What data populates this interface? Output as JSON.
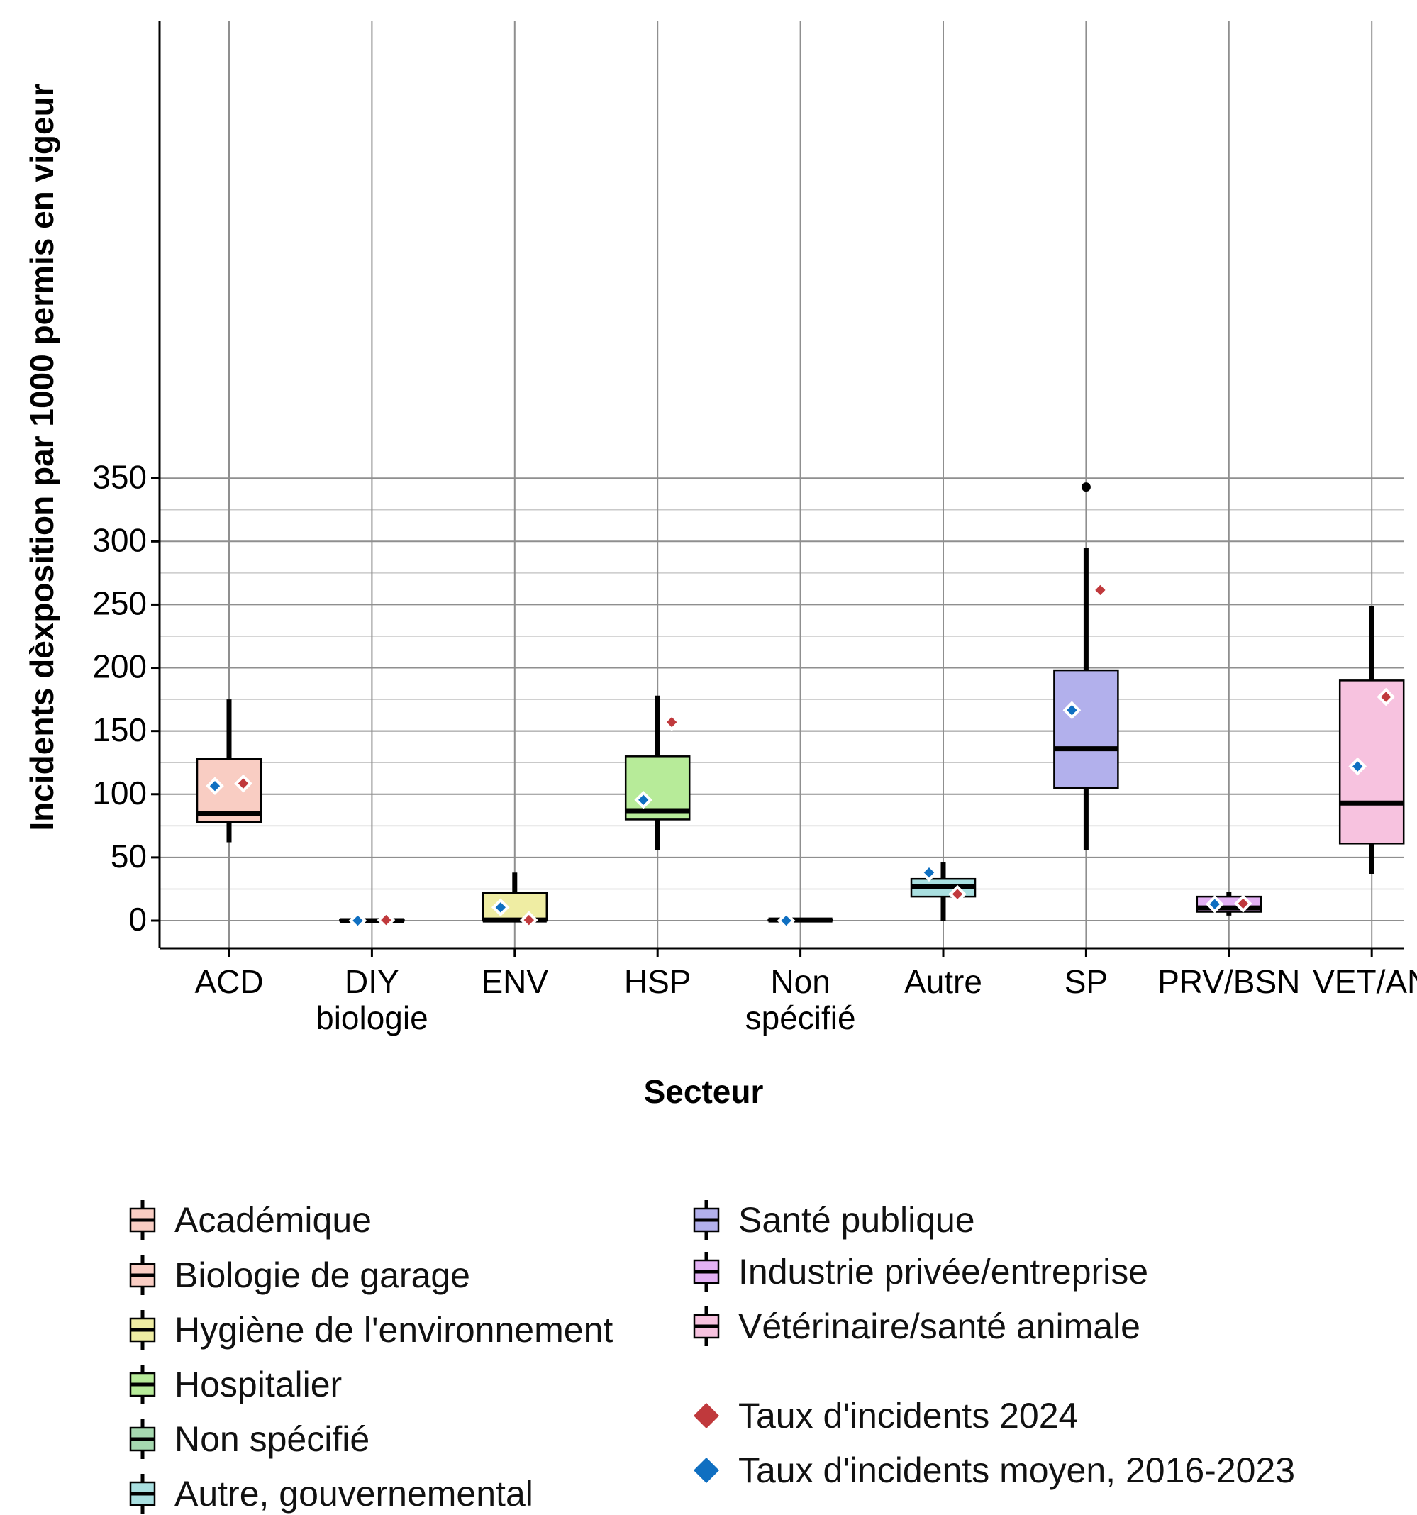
{
  "chart_data": {
    "type": "boxplot",
    "xlabel": "Secteur",
    "ylabel": "Incidents dèxposition par 1000 permis en vigeur",
    "ylim": [
      -10,
      360
    ],
    "yticks": [
      0,
      50,
      100,
      150,
      200,
      250,
      300,
      350
    ],
    "grid": true,
    "legend_position": "bottom",
    "categories": [
      {
        "code": [
          "ACD"
        ],
        "name": "Académique",
        "color": "#F9CDC3",
        "min": 62,
        "q1": 78,
        "median": 85,
        "q3": 128,
        "max": 175,
        "outliers": [],
        "avg_2016_2023": 106.5,
        "rate_2024": 108.5
      },
      {
        "code": [
          "DIY",
          "biologie"
        ],
        "name": "Biologie de garage",
        "color": "#F9CDC3",
        "min": 0,
        "q1": 0,
        "median": 0,
        "q3": 0.5,
        "max": 1,
        "outliers": [],
        "avg_2016_2023": 0,
        "rate_2024": 0.5
      },
      {
        "code": [
          "ENV"
        ],
        "name": "Hygiène de l'environnement",
        "color": "#EFEDA3",
        "min": 0,
        "q1": 0,
        "median": 0.5,
        "q3": 22,
        "max": 38,
        "outliers": [],
        "avg_2016_2023": 10.5,
        "rate_2024": 0.5
      },
      {
        "code": [
          "HSP"
        ],
        "name": "Hospitalier",
        "color": "#B7EB99",
        "min": 56,
        "q1": 80,
        "median": 87,
        "q3": 130,
        "max": 178,
        "outliers": [],
        "avg_2016_2023": 95.5,
        "rate_2024": 157
      },
      {
        "code": [
          "Non",
          "spécifié"
        ],
        "name": "Non spécifié",
        "color": "#A6D9B0",
        "min": 0,
        "q1": 0,
        "median": 0.5,
        "q3": 1,
        "max": 1,
        "outliers": [],
        "avg_2016_2023": 0,
        "rate_2024": null
      },
      {
        "code": [
          "Autre"
        ],
        "name": "Autre, gouvernemental",
        "color": "#A9DFE0",
        "min": 0,
        "q1": 19,
        "median": 27,
        "q3": 33,
        "max": 46,
        "outliers": [],
        "avg_2016_2023": 38,
        "rate_2024": 21
      },
      {
        "code": [
          "SP"
        ],
        "name": "Santé publique",
        "color": "#B2B0EC",
        "min": 56,
        "q1": 105,
        "median": 136,
        "q3": 198,
        "max": 295,
        "outliers": [
          343
        ],
        "avg_2016_2023": 166.5,
        "rate_2024": 261.5
      },
      {
        "code": [
          "PRV/BSN"
        ],
        "name": "Industrie privée/entreprise",
        "color": "#E3B1F4",
        "min": 4,
        "q1": 7,
        "median": 10,
        "q3": 19,
        "max": 23,
        "outliers": [],
        "avg_2016_2023": 13,
        "rate_2024": 13.5
      },
      {
        "code": [
          "VET/AN"
        ],
        "name": "Vétérinaire/santé animale",
        "color": "#F7C2DF",
        "min": 37,
        "q1": 61,
        "median": 93,
        "q3": 190,
        "max": 249,
        "outliers": [],
        "avg_2016_2023": 122,
        "rate_2024": 177
      }
    ],
    "markers": [
      {
        "key": "rate_2024",
        "label": "Taux d'incidents 2024",
        "color": "#C0393C"
      },
      {
        "key": "avg_2016_2023",
        "label": "Taux d'incidents moyen, 2016-2023",
        "color": "#0F6FC1"
      }
    ]
  }
}
